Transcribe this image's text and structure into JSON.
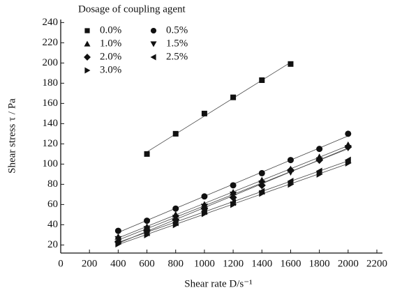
{
  "chart_data": {
    "type": "scatter",
    "legend_title": "Dosage of coupling agent",
    "xlabel": "Shear rate D/s⁻¹",
    "ylabel": "Shear stress τ / Pa",
    "xlim": [
      0,
      2200
    ],
    "xticks": [
      0,
      200,
      400,
      600,
      800,
      1000,
      1200,
      1400,
      1600,
      1800,
      2000,
      2200
    ],
    "ylim": [
      12,
      243
    ],
    "yticks": [
      20,
      40,
      60,
      80,
      100,
      120,
      140,
      160,
      180,
      200,
      220,
      240
    ],
    "series": [
      {
        "name": "0.0%",
        "marker": "square",
        "color": "#111",
        "x": [
          600,
          800,
          1000,
          1200,
          1400,
          1600
        ],
        "values": [
          110,
          130,
          150,
          166,
          183,
          199
        ]
      },
      {
        "name": "0.5%",
        "marker": "circle",
        "color": "#111",
        "x": [
          400,
          600,
          800,
          1000,
          1200,
          1400,
          1600,
          1800,
          2000
        ],
        "values": [
          34,
          44,
          56,
          68,
          79,
          91,
          104,
          115,
          130
        ]
      },
      {
        "name": "1.0%",
        "marker": "triangle-up",
        "color": "#111",
        "x": [
          400,
          600,
          800,
          1000,
          1200,
          1400,
          1600,
          1800,
          2000
        ],
        "values": [
          28,
          38,
          50,
          60,
          72,
          84,
          95,
          107,
          119
        ]
      },
      {
        "name": "1.5%",
        "marker": "triangle-down",
        "color": "#111",
        "x": [
          400,
          600,
          800,
          1000,
          1200,
          1400,
          1600,
          1800,
          2000
        ],
        "values": [
          26,
          36,
          47,
          58,
          70,
          81,
          92,
          104,
          116
        ]
      },
      {
        "name": "2.0%",
        "marker": "diamond",
        "color": "#111",
        "x": [
          400,
          600,
          800,
          1000,
          1200,
          1400,
          1600,
          1800,
          2000
        ],
        "values": [
          23,
          34,
          45,
          56,
          67,
          79,
          94,
          104,
          117
        ]
      },
      {
        "name": "2.5%",
        "marker": "triangle-left",
        "color": "#111",
        "x": [
          400,
          600,
          800,
          1000,
          1200,
          1400,
          1600,
          1800,
          2000
        ],
        "values": [
          24,
          32,
          42,
          53,
          62,
          73,
          83,
          93,
          104
        ]
      },
      {
        "name": "3.0%",
        "marker": "triangle-right",
        "color": "#111",
        "x": [
          400,
          600,
          800,
          1000,
          1200,
          1400,
          1600,
          1800,
          2000
        ],
        "values": [
          21,
          30,
          40,
          51,
          60,
          71,
          80,
          90,
          101
        ]
      }
    ]
  }
}
